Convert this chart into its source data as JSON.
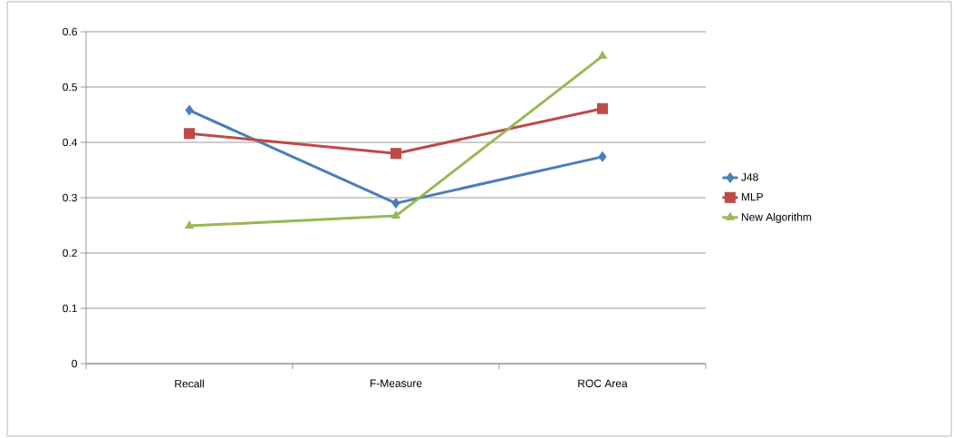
{
  "chart_data": {
    "type": "line",
    "categories": [
      "Recall",
      "F-Measure",
      "ROC Area"
    ],
    "series": [
      {
        "name": "J48",
        "color": "#4a7ebb",
        "marker": "diamond",
        "values": [
          0.458,
          0.29,
          0.374
        ]
      },
      {
        "name": "MLP",
        "color": "#be4b48",
        "marker": "square",
        "values": [
          0.416,
          0.38,
          0.461
        ]
      },
      {
        "name": "New Algorithm",
        "color": "#98b954",
        "marker": "triangle",
        "values": [
          0.249,
          0.267,
          0.556
        ]
      }
    ],
    "ylim": [
      0,
      0.6
    ],
    "yticks": [
      0,
      0.1,
      0.2,
      0.3,
      0.4,
      0.5,
      0.6
    ],
    "grid": "y",
    "legend": "right",
    "line_style": "solid"
  }
}
